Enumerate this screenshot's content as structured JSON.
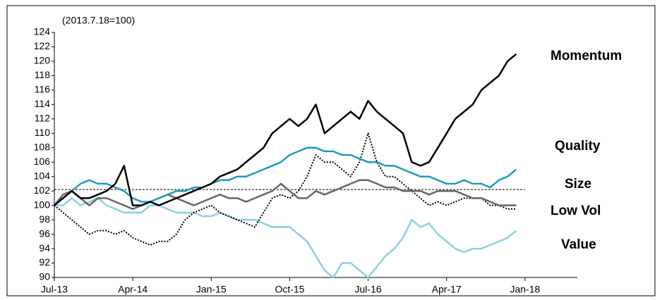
{
  "chart_data": {
    "type": "line",
    "y_axis_label": "(2013.7.18=100)",
    "x": [
      0,
      1,
      2,
      3,
      4,
      5,
      6,
      7,
      8,
      9,
      10,
      11,
      12,
      13,
      14,
      15,
      16,
      17,
      18,
      19,
      20,
      21,
      22,
      23,
      24,
      25,
      26,
      27,
      28,
      29,
      30,
      31,
      32,
      33,
      34,
      35,
      36,
      37,
      38,
      39,
      40,
      41,
      42,
      43,
      44,
      45,
      46,
      47,
      48,
      49,
      50,
      51,
      52,
      53
    ],
    "xlim": [
      0,
      60
    ],
    "xticks": [
      {
        "value": 0,
        "label": "Jul-13"
      },
      {
        "value": 9,
        "label": "Apr-14"
      },
      {
        "value": 18,
        "label": "Jan-15"
      },
      {
        "value": 27,
        "label": "Oct-15"
      },
      {
        "value": 36,
        "label": "Jul-16"
      },
      {
        "value": 45,
        "label": "Apr-17"
      },
      {
        "value": 54,
        "label": "Jan-18"
      }
    ],
    "ylim": [
      90,
      124
    ],
    "yticks": [
      90,
      92,
      94,
      96,
      98,
      100,
      102,
      104,
      106,
      108,
      110,
      112,
      114,
      116,
      118,
      120,
      122,
      124
    ],
    "reference_line": 102.2,
    "series": [
      {
        "name": "Momentum",
        "color": "#000000",
        "style": "solid",
        "values": [
          100,
          101,
          102,
          101,
          101,
          101.5,
          102,
          103,
          105.5,
          100,
          100,
          100.5,
          100,
          100.5,
          101,
          101.5,
          102,
          102.5,
          103,
          104,
          104.5,
          105,
          106,
          107,
          108,
          110,
          111,
          112,
          111,
          112,
          114,
          110,
          111,
          112,
          113,
          112,
          114.5,
          113,
          112,
          111,
          110,
          106,
          105.5,
          106,
          108,
          110,
          112,
          113,
          114,
          116,
          117,
          118,
          120,
          121
        ]
      },
      {
        "name": "Quality",
        "color": "#1a9bc0",
        "style": "solid",
        "values": [
          100,
          101,
          102,
          103,
          103.5,
          103,
          103,
          102.5,
          102,
          101,
          100.5,
          100.5,
          101,
          101.5,
          102,
          102,
          102.5,
          102.5,
          103,
          103.5,
          103.5,
          104,
          104,
          104.5,
          105,
          105.5,
          106,
          107,
          107.5,
          108,
          108,
          107.5,
          107.5,
          107,
          107,
          106.5,
          106,
          106,
          105.5,
          105.5,
          105,
          104.5,
          104,
          104,
          103.5,
          103,
          103,
          103.5,
          103,
          103,
          102.5,
          103.5,
          104,
          105
        ]
      },
      {
        "name": "Size",
        "color": "#666666",
        "style": "solid",
        "values": [
          100,
          101.5,
          102,
          101,
          100,
          101,
          101,
          100.5,
          100,
          99.5,
          100,
          100.5,
          101,
          101.5,
          101,
          100.5,
          100,
          100.5,
          101,
          101.5,
          101,
          101,
          100.5,
          101,
          101.5,
          102,
          103,
          102,
          101,
          101,
          102,
          101.5,
          102,
          102.5,
          103,
          103.5,
          103.5,
          103,
          102.5,
          102.5,
          102,
          102,
          102,
          101.5,
          102,
          102,
          102,
          101.5,
          101,
          101,
          100.5,
          100,
          100,
          100
        ]
      },
      {
        "name": "Low Vol",
        "color": "#000000",
        "style": "dotted",
        "values": [
          100,
          99,
          98,
          97,
          96,
          96.5,
          96.5,
          96,
          96.5,
          95.5,
          95,
          94.5,
          95,
          95,
          96,
          98,
          99,
          99.5,
          100,
          99,
          98.5,
          98,
          97.5,
          97,
          99,
          101,
          101.5,
          101,
          102,
          104,
          107,
          106,
          106,
          105,
          104,
          106,
          110,
          106,
          104,
          104,
          103,
          102,
          101,
          100,
          100.5,
          100,
          100.5,
          101,
          101,
          101,
          100,
          100,
          99.5,
          99.5
        ]
      },
      {
        "name": "Value",
        "color": "#8dd0e1",
        "style": "solid",
        "values": [
          100,
          100,
          101,
          100,
          100.5,
          101,
          100,
          99.5,
          99,
          99,
          99,
          100,
          100,
          99.5,
          99,
          99,
          99,
          98.5,
          98.5,
          99,
          98.5,
          98,
          98,
          98,
          97.5,
          97,
          97,
          97,
          96,
          95,
          93,
          91,
          90,
          92,
          92,
          91,
          90,
          91.5,
          93,
          94,
          95.5,
          98,
          97,
          97.5,
          96,
          95,
          94,
          93.5,
          94,
          94,
          94.5,
          95,
          95.5,
          96.5
        ]
      }
    ]
  }
}
